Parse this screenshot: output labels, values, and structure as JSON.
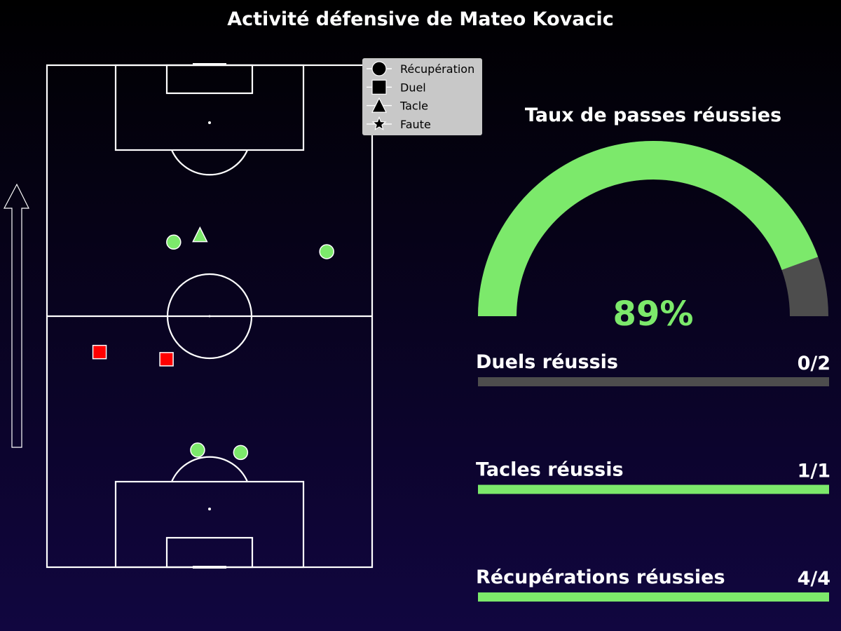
{
  "title": "Activité défensive de Mateo Kovacic",
  "colors": {
    "success": "#7ce96b",
    "fail": "#ff0000",
    "track": "#4d4d4d",
    "legend_bg": "#c8c8c8",
    "pitch_lines": "#ffffff"
  },
  "legend": {
    "items": [
      {
        "label": "Récupération",
        "marker": "circle"
      },
      {
        "label": "Duel",
        "marker": "square"
      },
      {
        "label": "Tacle",
        "marker": "triangle"
      },
      {
        "label": "Faute",
        "marker": "star"
      }
    ]
  },
  "gauge": {
    "title": "Taux de passes réussies",
    "value": 0.89,
    "value_label": "89%"
  },
  "stats": [
    {
      "label": "Duels réussis",
      "value_label": "0/2",
      "success": 0,
      "total": 2
    },
    {
      "label": "Tacles réussis",
      "value_label": "1/1",
      "success": 1,
      "total": 1
    },
    {
      "label": "Récupérations réussies",
      "value_label": "4/4",
      "success": 4,
      "total": 4
    }
  ],
  "chart_data": {
    "type": "scatter",
    "title": "Activité défensive de Mateo Kovacic",
    "pitch": {
      "x_range": [
        0,
        68
      ],
      "y_range": [
        0,
        105
      ],
      "attack_direction": "up"
    },
    "events": [
      {
        "type": "Récupération",
        "marker": "circle",
        "x": 26.5,
        "y": 68,
        "successful": true
      },
      {
        "type": "Tacle",
        "marker": "triangle",
        "x": 32,
        "y": 69.5,
        "successful": true
      },
      {
        "type": "Récupération",
        "marker": "circle",
        "x": 58.5,
        "y": 66,
        "successful": true
      },
      {
        "type": "Duel",
        "marker": "square",
        "x": 11,
        "y": 45,
        "successful": false
      },
      {
        "type": "Duel",
        "marker": "square",
        "x": 25,
        "y": 43.5,
        "successful": false
      },
      {
        "type": "Récupération",
        "marker": "circle",
        "x": 31.5,
        "y": 24.5,
        "successful": true
      },
      {
        "type": "Récupération",
        "marker": "circle",
        "x": 40.5,
        "y": 24,
        "successful": true
      }
    ]
  }
}
